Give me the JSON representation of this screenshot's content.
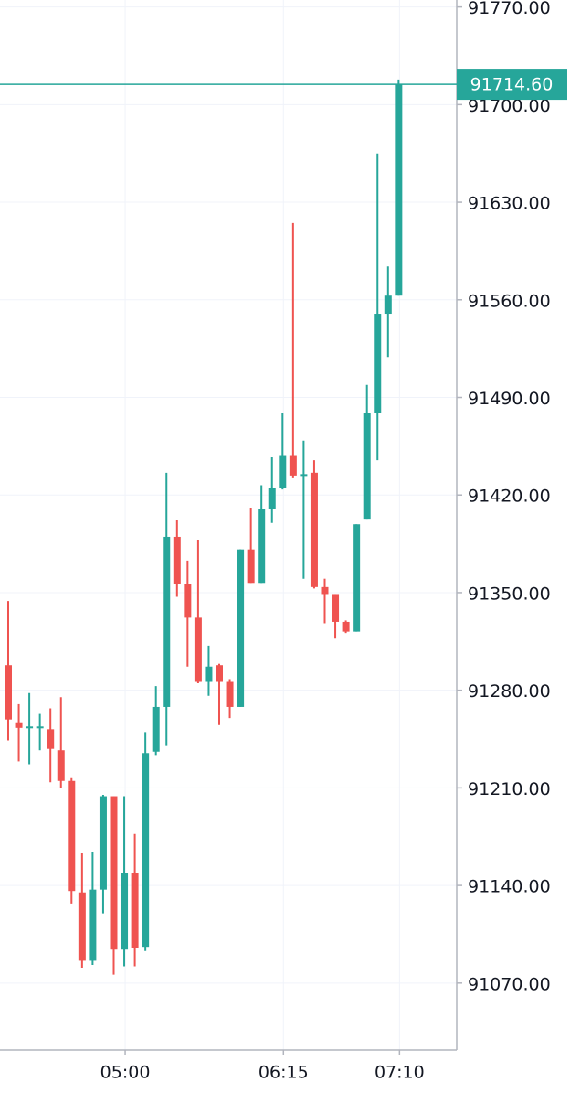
{
  "chart_data": {
    "type": "candlestick",
    "categories": [
      null,
      null,
      null,
      null,
      null,
      null,
      null,
      null,
      null,
      null,
      null,
      "05:00",
      null,
      null,
      null,
      null,
      null,
      null,
      null,
      null,
      null,
      null,
      null,
      null,
      null,
      null,
      "06:15",
      null,
      null,
      null,
      null,
      null,
      null,
      null,
      null,
      null,
      null,
      "07:10"
    ],
    "open": [
      91298,
      91257,
      91253,
      91253,
      91252,
      91237,
      91215,
      91135,
      91086,
      91137,
      91204,
      91094,
      91149,
      91096,
      91236,
      91268,
      91390,
      91356,
      91332,
      91286,
      91298,
      91286,
      91268,
      91381,
      91357,
      91410,
      91425,
      91448,
      91434,
      91436,
      91354,
      91349,
      91329,
      91322,
      91403,
      91479,
      91550,
      91563
    ],
    "high": [
      91344,
      91270,
      91278,
      91263,
      91267,
      91275,
      91217,
      91163,
      91164,
      91205,
      91204,
      91204,
      91177,
      91250,
      91283,
      91436,
      91402,
      91373,
      91388,
      91312,
      91299,
      91288,
      91381,
      91411,
      91427,
      91447,
      91479,
      91615,
      91459,
      91445,
      91360,
      91349,
      91330,
      91399,
      91499,
      91665,
      91584,
      91718
    ],
    "low": [
      91244,
      91229,
      91227,
      91237,
      91214,
      91210,
      91127,
      91081,
      91083,
      91120,
      91076,
      91082,
      91082,
      91093,
      91233,
      91240,
      91347,
      91297,
      91285,
      91276,
      91255,
      91260,
      91268,
      91357,
      91357,
      91400,
      91424,
      91432,
      91360,
      91353,
      91328,
      91317,
      91321,
      91322,
      91403,
      91445,
      91519,
      91563
    ],
    "close": [
      91259,
      91253,
      91254,
      91254,
      91238,
      91215,
      91136,
      91086,
      91137,
      91204,
      91094,
      91149,
      91095,
      91235,
      91268,
      91390,
      91356,
      91332,
      91286,
      91297,
      91286,
      91268,
      91381,
      91357,
      91410,
      91425,
      91448,
      91434,
      91435,
      91354,
      91349,
      91329,
      91322,
      91399,
      91479,
      91550,
      91563,
      91714.6
    ],
    "up_color": "#26a69a",
    "down_color": "#ef5350",
    "ylim": [
      91022,
      91775
    ],
    "yticks": [
      {
        "value": 91070,
        "label": "91070.00"
      },
      {
        "value": 91140,
        "label": "91140.00"
      },
      {
        "value": 91210,
        "label": "91210.00"
      },
      {
        "value": 91280,
        "label": "91280.00"
      },
      {
        "value": 91350,
        "label": "91350.00"
      },
      {
        "value": 91420,
        "label": "91420.00"
      },
      {
        "value": 91490,
        "label": "91490.00"
      },
      {
        "value": 91560,
        "label": "91560.00"
      },
      {
        "value": 91630,
        "label": "91630.00"
      },
      {
        "value": 91700,
        "label": "91700.00"
      },
      {
        "value": 91770,
        "label": "91770.00"
      }
    ],
    "price_line": {
      "value": 91714.6,
      "label": "91714.60"
    },
    "grid": true
  }
}
